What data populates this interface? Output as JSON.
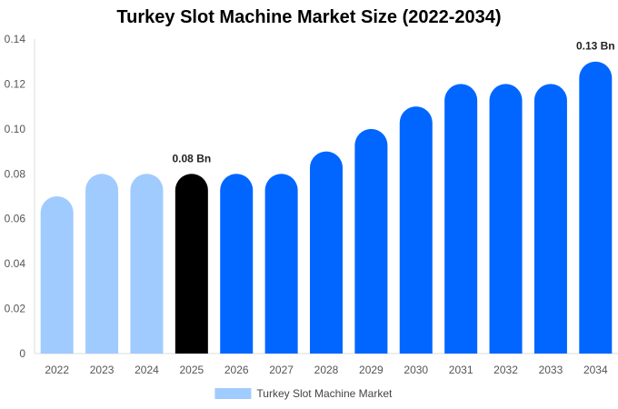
{
  "chart_data": {
    "type": "bar",
    "title": "Turkey Slot Machine Market Size (2022-2034)",
    "xlabel": "",
    "ylabel": "",
    "categories": [
      "2022",
      "2023",
      "2024",
      "2025",
      "2026",
      "2027",
      "2028",
      "2029",
      "2030",
      "2031",
      "2032",
      "2033",
      "2034"
    ],
    "series": [
      {
        "name": "Turkey Slot Machine Market",
        "values": [
          0.07,
          0.08,
          0.08,
          0.08,
          0.08,
          0.08,
          0.09,
          0.1,
          0.11,
          0.12,
          0.12,
          0.12,
          0.13
        ]
      }
    ],
    "ylim": [
      0,
      0.14
    ],
    "yticks": [
      0,
      0.02,
      0.04,
      0.06,
      0.08,
      0.1,
      0.12,
      0.14
    ],
    "ytick_labels": [
      "0",
      "0.02",
      "0.04",
      "0.06",
      "0.08",
      "0.10",
      "0.12",
      "0.14"
    ],
    "bar_colors": [
      "#a0cbff",
      "#a0cbff",
      "#a0cbff",
      "#000000",
      "#0066ff",
      "#0066ff",
      "#0066ff",
      "#0066ff",
      "#0066ff",
      "#0066ff",
      "#0066ff",
      "#0066ff",
      "#0066ff"
    ],
    "data_labels": [
      {
        "category": "2025",
        "text": "0.08 Bn"
      },
      {
        "category": "2034",
        "text": "0.13 Bn"
      }
    ],
    "legend": {
      "position": "bottom",
      "label": "Turkey Slot Machine Market",
      "color": "#a0cbff"
    },
    "grid": false
  }
}
